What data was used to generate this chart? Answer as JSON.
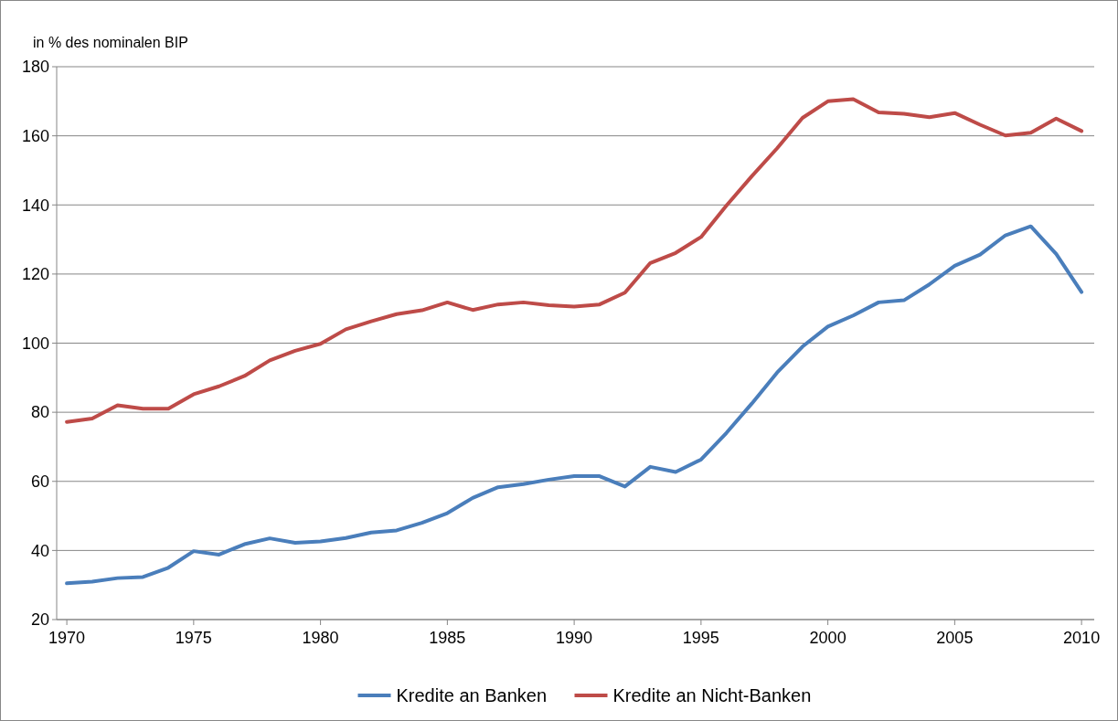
{
  "chart_data": {
    "type": "line",
    "ylabel": "in % des nominalen BIP",
    "x": [
      1970,
      1971,
      1972,
      1973,
      1974,
      1975,
      1976,
      1977,
      1978,
      1979,
      1980,
      1981,
      1982,
      1983,
      1984,
      1985,
      1986,
      1987,
      1988,
      1989,
      1990,
      1991,
      1992,
      1993,
      1994,
      1995,
      1996,
      1997,
      1998,
      1999,
      2000,
      2001,
      2002,
      2003,
      2004,
      2005,
      2006,
      2007,
      2008,
      2009,
      2010
    ],
    "series": [
      {
        "name": "Kredite an Banken",
        "color": "#4a7ebb",
        "values": [
          30.5,
          31,
          32,
          32.3,
          35,
          39.8,
          38.8,
          41.8,
          43.5,
          42.2,
          42.6,
          43.6,
          45.2,
          45.8,
          48,
          50.8,
          55.2,
          58.3,
          59.2,
          60.5,
          61.5,
          61.5,
          58.5,
          64.2,
          62.7,
          66.3,
          74,
          82.5,
          91.5,
          99,
          104.8,
          108,
          111.8,
          112.4,
          117,
          122.4,
          125.6,
          131.2,
          133.8,
          125.8,
          114.8
        ]
      },
      {
        "name": "Kredite an Nicht-Banken",
        "color": "#be4b48",
        "values": [
          77.2,
          78.2,
          82,
          81,
          81,
          85.2,
          87.5,
          90.5,
          95,
          97.8,
          99.8,
          104,
          106.3,
          108.4,
          109.5,
          111.8,
          109.6,
          111.2,
          111.8,
          111,
          110.6,
          111.2,
          114.6,
          123.2,
          126.1,
          130.7,
          139.8,
          148.3,
          156.4,
          165.2,
          170,
          170.6,
          166.8,
          166.4,
          165.4,
          166.6,
          163.2,
          160.1,
          160.9,
          165,
          161.4
        ]
      }
    ],
    "xlim": [
      1969.6,
      2010.5
    ],
    "xticks": [
      1970,
      1975,
      1980,
      1985,
      1990,
      1995,
      2000,
      2005,
      2010
    ],
    "ylim": [
      20,
      180
    ],
    "yticks": [
      20,
      40,
      60,
      80,
      100,
      120,
      140,
      160,
      180
    ],
    "grid": "y",
    "legend": "bottom",
    "marker": "none",
    "line_style": "solid"
  }
}
